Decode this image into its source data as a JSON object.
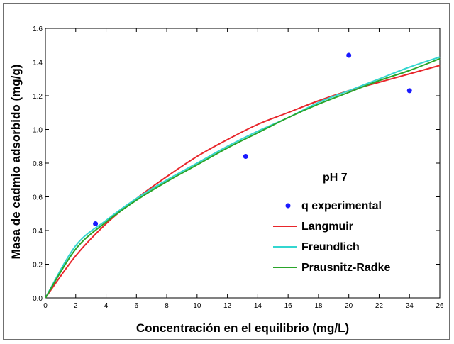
{
  "chart_data": {
    "type": "scatter",
    "title": "",
    "xlabel": "Concentración en el equilibrio (mg/L)",
    "ylabel": "Masa de cadmio adsorbido (mg/g)",
    "annotation": "pH 7",
    "xlim": [
      0,
      26
    ],
    "ylim": [
      0.0,
      1.6
    ],
    "xticks": [
      "0",
      "2",
      "4",
      "6",
      "8",
      "10",
      "12",
      "14",
      "16",
      "18",
      "20",
      "22",
      "24",
      "26"
    ],
    "yticks": [
      "0.0",
      "0.2",
      "0.4",
      "0.6",
      "0.8",
      "1.0",
      "1.2",
      "1.4",
      "1.6"
    ],
    "grid": false,
    "legend_position": "center-right",
    "points": {
      "name": "q experimental",
      "color": "#1a1aff",
      "x": [
        3.3,
        13.2,
        20.0,
        24.0
      ],
      "y": [
        0.44,
        0.84,
        1.44,
        1.23
      ]
    },
    "curves": [
      {
        "name": "Langmuir",
        "color": "#e8262b",
        "x": [
          0,
          2,
          4,
          6,
          8,
          10,
          12,
          14,
          16,
          18,
          20,
          22,
          24,
          26
        ],
        "y": [
          0.0,
          0.25,
          0.44,
          0.59,
          0.72,
          0.84,
          0.94,
          1.03,
          1.1,
          1.17,
          1.23,
          1.28,
          1.33,
          1.38
        ]
      },
      {
        "name": "Freundlich",
        "color": "#33d6d0",
        "x": [
          0,
          2,
          4,
          6,
          8,
          10,
          12,
          14,
          16,
          18,
          20,
          22,
          24,
          26
        ],
        "y": [
          0.0,
          0.31,
          0.46,
          0.59,
          0.7,
          0.8,
          0.9,
          0.99,
          1.07,
          1.16,
          1.23,
          1.3,
          1.37,
          1.43
        ]
      },
      {
        "name": "Prausnitz-Radke",
        "color": "#2aa52a",
        "x": [
          0,
          2,
          4,
          6,
          8,
          10,
          12,
          14,
          16,
          18,
          20,
          22,
          24,
          26
        ],
        "y": [
          0.0,
          0.29,
          0.45,
          0.58,
          0.69,
          0.79,
          0.89,
          0.98,
          1.07,
          1.15,
          1.22,
          1.29,
          1.35,
          1.42
        ]
      }
    ]
  }
}
